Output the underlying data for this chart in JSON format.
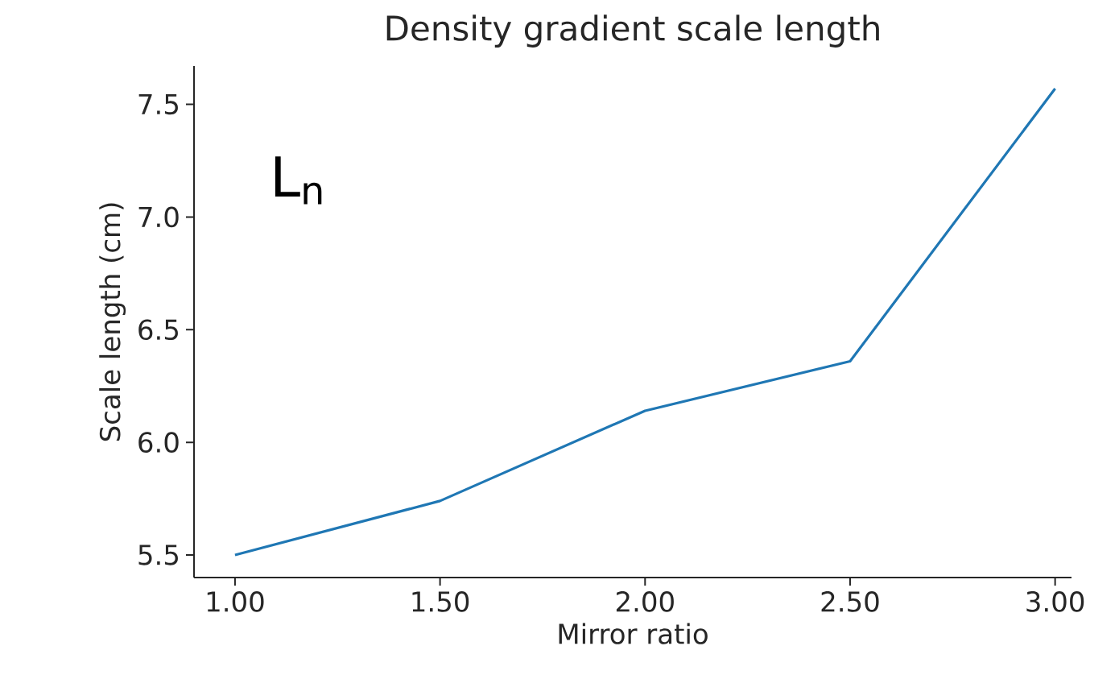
{
  "chart_data": {
    "type": "line",
    "title": "Density gradient scale length",
    "xlabel": "Mirror ratio",
    "ylabel": "Scale length (cm)",
    "x": [
      1.0,
      1.5,
      2.0,
      2.5,
      3.0
    ],
    "series": [
      {
        "color": "#1f77b4",
        "values": [
          5.5,
          5.74,
          6.14,
          6.36,
          7.57
        ]
      }
    ],
    "xlim": [
      0.9,
      3.04
    ],
    "ylim": [
      5.4,
      7.67
    ],
    "xticks": [
      {
        "value": 1.0,
        "label": "1.00"
      },
      {
        "value": 1.5,
        "label": "1.50"
      },
      {
        "value": 2.0,
        "label": "2.00"
      },
      {
        "value": 2.5,
        "label": "2.50"
      },
      {
        "value": 3.0,
        "label": "3.00"
      }
    ],
    "yticks": [
      {
        "value": 5.5,
        "label": "5.5"
      },
      {
        "value": 6.0,
        "label": "6.0"
      },
      {
        "value": 6.5,
        "label": "6.5"
      },
      {
        "value": 7.0,
        "label": "7.0"
      },
      {
        "value": 7.5,
        "label": "7.5"
      }
    ],
    "annotations": [
      "L$_{n}$"
    ],
    "grid": false,
    "marker": "none",
    "line_style": "solid"
  }
}
